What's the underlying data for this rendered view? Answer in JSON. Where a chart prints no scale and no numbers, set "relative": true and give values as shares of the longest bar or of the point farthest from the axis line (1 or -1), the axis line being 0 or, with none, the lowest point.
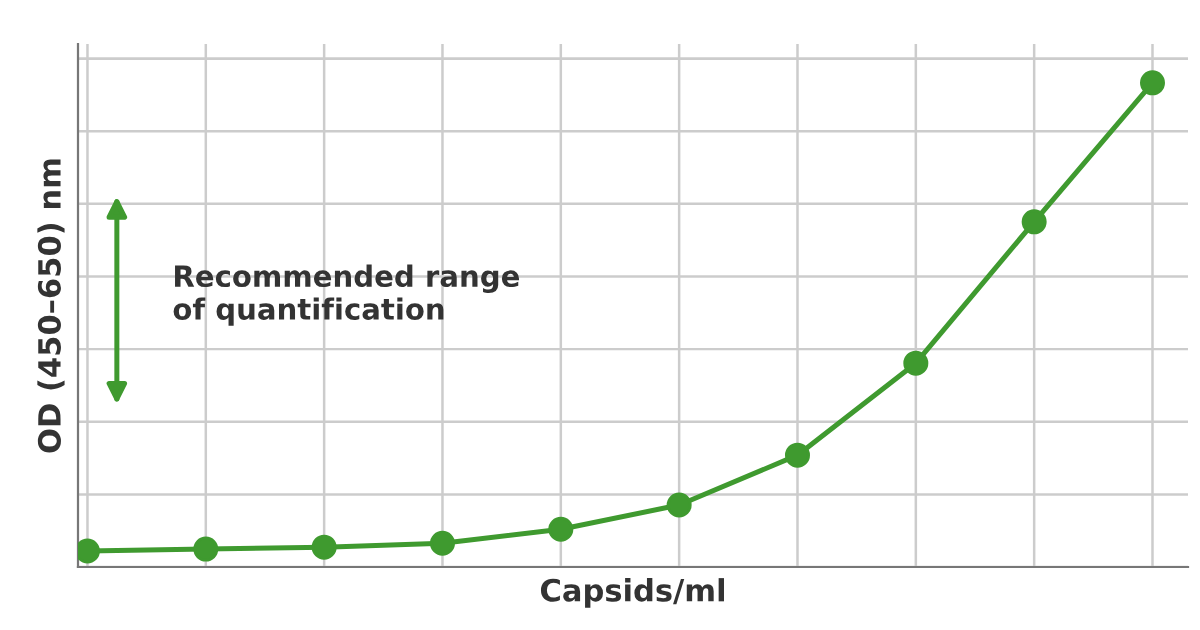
{
  "chart_data": {
    "type": "line",
    "relative": true,
    "xlabel": "Capsids/ml",
    "ylabel": "OD (450–650) nm",
    "categories": [
      null,
      null,
      null,
      null,
      null,
      null,
      null,
      null,
      null,
      null
    ],
    "series": [
      {
        "color": "#3f9a2f",
        "marker": "circle",
        "values": [
          0.033,
          0.037,
          0.041,
          0.049,
          0.078,
          0.128,
          0.231,
          0.421,
          0.713,
          1.0
        ]
      }
    ],
    "annotations": [
      "Recommended range\nof quantification"
    ],
    "grid": true,
    "legend": false,
    "tick_labels": false
  }
}
